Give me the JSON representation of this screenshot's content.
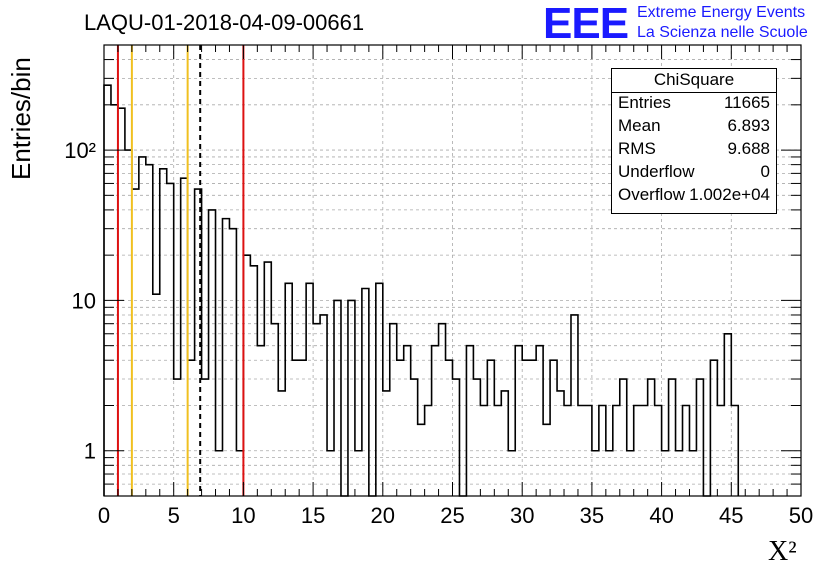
{
  "title": "LAQU-01-2018-04-09-00661",
  "logo": {
    "mark": "EEE",
    "line1": "Extreme Energy Events",
    "line2": "La Scienza nelle Scuole",
    "color": "#1a1aff"
  },
  "stats": {
    "title": "ChiSquare",
    "rows": [
      {
        "key": "Entries",
        "value": "11665"
      },
      {
        "key": "Mean",
        "value": "6.893"
      },
      {
        "key": "RMS",
        "value": "9.688"
      },
      {
        "key": "Underflow",
        "value": "0"
      },
      {
        "key": "Overflow",
        "value": "1.002e+04"
      }
    ]
  },
  "chart_data": {
    "type": "bar",
    "style": "step-histogram",
    "title": "LAQU-01-2018-04-09-00661",
    "xlabel": "X²",
    "ylabel": "Entries/bin",
    "xlim": [
      0,
      50
    ],
    "ylim": [
      0.5,
      500
    ],
    "yscale": "log",
    "grid": true,
    "bin_width": 0.5,
    "bin_start": 0,
    "values": [
      270,
      200,
      190,
      100,
      55,
      90,
      80,
      11,
      75,
      60,
      3,
      65,
      4,
      55,
      3,
      40,
      1,
      35,
      30,
      1,
      20,
      17,
      5,
      18,
      7,
      2.5,
      13,
      4,
      4,
      13,
      7,
      8,
      1,
      10,
      0,
      10,
      1,
      12,
      0,
      13,
      2.5,
      7,
      4,
      5,
      3,
      1.5,
      2,
      5,
      7,
      4,
      3,
      0.5,
      5,
      3,
      2,
      4,
      2,
      2.5,
      1,
      5,
      4,
      4,
      5,
      1.5,
      4,
      2.5,
      2,
      8,
      2,
      2,
      1,
      2,
      1,
      2,
      3,
      1,
      2,
      2,
      3,
      2,
      1,
      3,
      1,
      2,
      1,
      3,
      0,
      4,
      2,
      6,
      2
    ],
    "xticks": [
      0,
      5,
      10,
      15,
      20,
      25,
      30,
      35,
      40,
      45,
      50
    ],
    "yticks": [
      1,
      10,
      100
    ],
    "ytick_labels": [
      "1",
      "10",
      "10²"
    ],
    "vertical_lines": [
      {
        "x": 1.0,
        "color": "#dd1111",
        "style": "solid"
      },
      {
        "x": 2.0,
        "color": "#f0c020",
        "style": "solid"
      },
      {
        "x": 6.0,
        "color": "#f0c020",
        "style": "solid"
      },
      {
        "x": 6.9,
        "color": "#000000",
        "style": "dashed"
      },
      {
        "x": 10.0,
        "color": "#dd1111",
        "style": "solid"
      }
    ]
  }
}
